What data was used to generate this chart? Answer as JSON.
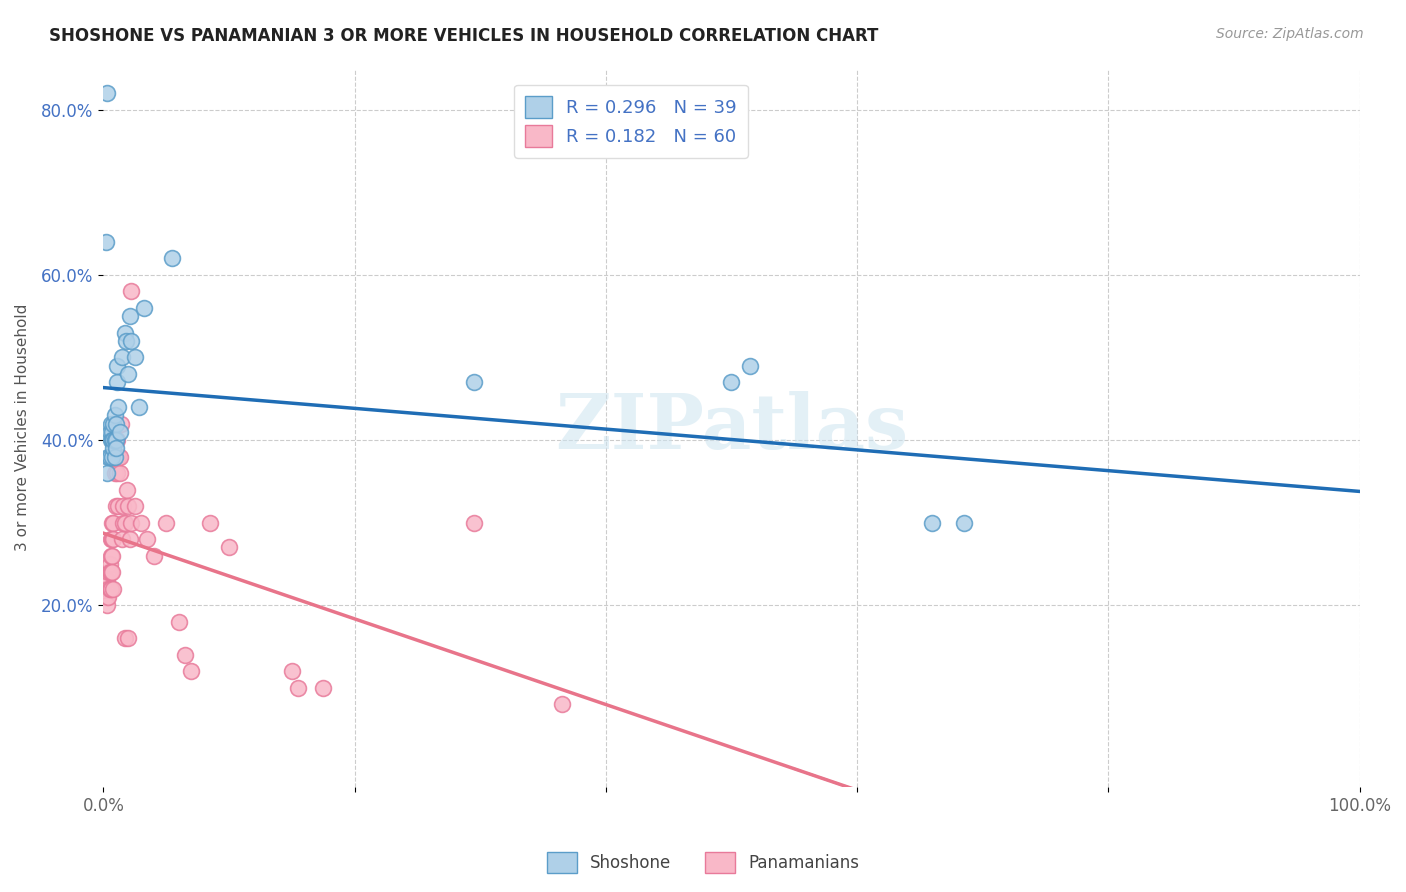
{
  "title": "SHOSHONE VS PANAMANIAN 3 OR MORE VEHICLES IN HOUSEHOLD CORRELATION CHART",
  "source": "Source: ZipAtlas.com",
  "ylabel": "3 or more Vehicles in Household",
  "xlim": [
    0.0,
    1.0
  ],
  "ylim": [
    -0.02,
    0.85
  ],
  "xticks": [
    0.0,
    0.2,
    0.4,
    0.6,
    0.8,
    1.0
  ],
  "xticklabels": [
    "0.0%",
    "",
    "",
    "",
    "",
    "100.0%"
  ],
  "yticks": [
    0.2,
    0.4,
    0.6,
    0.8
  ],
  "yticklabels": [
    "20.0%",
    "40.0%",
    "60.0%",
    "80.0%"
  ],
  "shoshone_R": 0.296,
  "shoshone_N": 39,
  "panamanian_R": 0.182,
  "panamanian_N": 60,
  "shoshone_color": "#afd0e8",
  "panamanian_color": "#f9b8c8",
  "shoshone_edge_color": "#5b9dc9",
  "panamanian_edge_color": "#e87a9a",
  "shoshone_line_color": "#1f6db5",
  "panamanian_line_color": "#e8748a",
  "dashed_line_color": "#d4a0b0",
  "background_color": "#ffffff",
  "watermark": "ZIPatlas",
  "shoshone_x": [
    0.003,
    0.004,
    0.005,
    0.005,
    0.006,
    0.006,
    0.007,
    0.007,
    0.007,
    0.008,
    0.008,
    0.008,
    0.009,
    0.009,
    0.009,
    0.01,
    0.01,
    0.01,
    0.011,
    0.011,
    0.012,
    0.013,
    0.015,
    0.017,
    0.018,
    0.02,
    0.021,
    0.022,
    0.025,
    0.028,
    0.032,
    0.055,
    0.003,
    0.295,
    0.5,
    0.515,
    0.66,
    0.685,
    0.002
  ],
  "shoshone_y": [
    0.36,
    0.38,
    0.38,
    0.41,
    0.4,
    0.42,
    0.38,
    0.41,
    0.4,
    0.39,
    0.42,
    0.4,
    0.4,
    0.43,
    0.38,
    0.42,
    0.4,
    0.39,
    0.47,
    0.49,
    0.44,
    0.41,
    0.5,
    0.53,
    0.52,
    0.48,
    0.55,
    0.52,
    0.5,
    0.44,
    0.56,
    0.62,
    0.82,
    0.47,
    0.47,
    0.49,
    0.3,
    0.3,
    0.64
  ],
  "panamanian_x": [
    0.002,
    0.002,
    0.003,
    0.003,
    0.003,
    0.003,
    0.004,
    0.004,
    0.004,
    0.005,
    0.005,
    0.005,
    0.006,
    0.006,
    0.006,
    0.006,
    0.007,
    0.007,
    0.007,
    0.007,
    0.008,
    0.008,
    0.008,
    0.009,
    0.009,
    0.01,
    0.01,
    0.011,
    0.011,
    0.012,
    0.012,
    0.013,
    0.013,
    0.014,
    0.015,
    0.016,
    0.016,
    0.017,
    0.017,
    0.019,
    0.02,
    0.02,
    0.021,
    0.022,
    0.022,
    0.025,
    0.03,
    0.035,
    0.04,
    0.05,
    0.06,
    0.065,
    0.07,
    0.085,
    0.1,
    0.15,
    0.155,
    0.175,
    0.295,
    0.365
  ],
  "panamanian_y": [
    0.22,
    0.21,
    0.22,
    0.23,
    0.21,
    0.2,
    0.22,
    0.24,
    0.21,
    0.25,
    0.24,
    0.22,
    0.28,
    0.26,
    0.24,
    0.22,
    0.3,
    0.28,
    0.26,
    0.24,
    0.3,
    0.28,
    0.22,
    0.36,
    0.38,
    0.32,
    0.38,
    0.4,
    0.36,
    0.38,
    0.32,
    0.36,
    0.38,
    0.42,
    0.28,
    0.32,
    0.3,
    0.3,
    0.16,
    0.34,
    0.32,
    0.16,
    0.28,
    0.3,
    0.58,
    0.32,
    0.3,
    0.28,
    0.26,
    0.3,
    0.18,
    0.14,
    0.12,
    0.3,
    0.27,
    0.12,
    0.1,
    0.1,
    0.3,
    0.08
  ]
}
